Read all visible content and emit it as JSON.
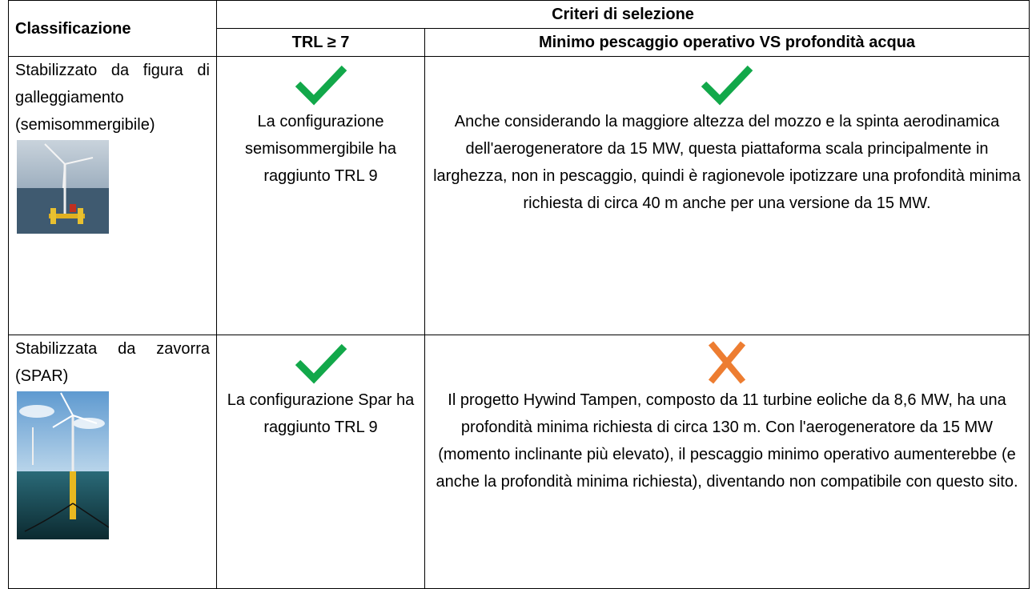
{
  "table": {
    "header": {
      "classification": "Classificazione",
      "criteria": "Criteri di selezione",
      "trl": "TRL ≥ 7",
      "draft": "Minimo pescaggio operativo VS profondità acqua"
    },
    "rows": [
      {
        "classification": "Stabilizzato da figura di galleggiamento (semisommergibile)",
        "trl": "La configurazione semisommergibile ha raggiunto TRL 9",
        "draft": "Anche considerando la maggiore altezza del mozzo e la spinta aerodinamica dell'aerogeneratore da 15 MW, questa piattaforma scala principalmente in larghezza, non in pescaggio, quindi è ragionevole ipotizzare una profondità minima richiesta di circa 40 m anche per una versione da 15 MW."
      },
      {
        "classification": "Stabilizzata da zavorra (SPAR)",
        "trl": "La configurazione Spar ha raggiunto TRL 9",
        "draft": "Il progetto Hywind Tampen, composto da 11 turbine eoliche da 8,6 MW, ha una profondità minima richiesta di circa 130 m. Con l'aerogeneratore da 15 MW (momento inclinante più elevato), il pescaggio minimo operativo aumenterebbe (e anche la profondità minima richiesta), diventando non compatibile con questo sito."
      }
    ]
  }
}
